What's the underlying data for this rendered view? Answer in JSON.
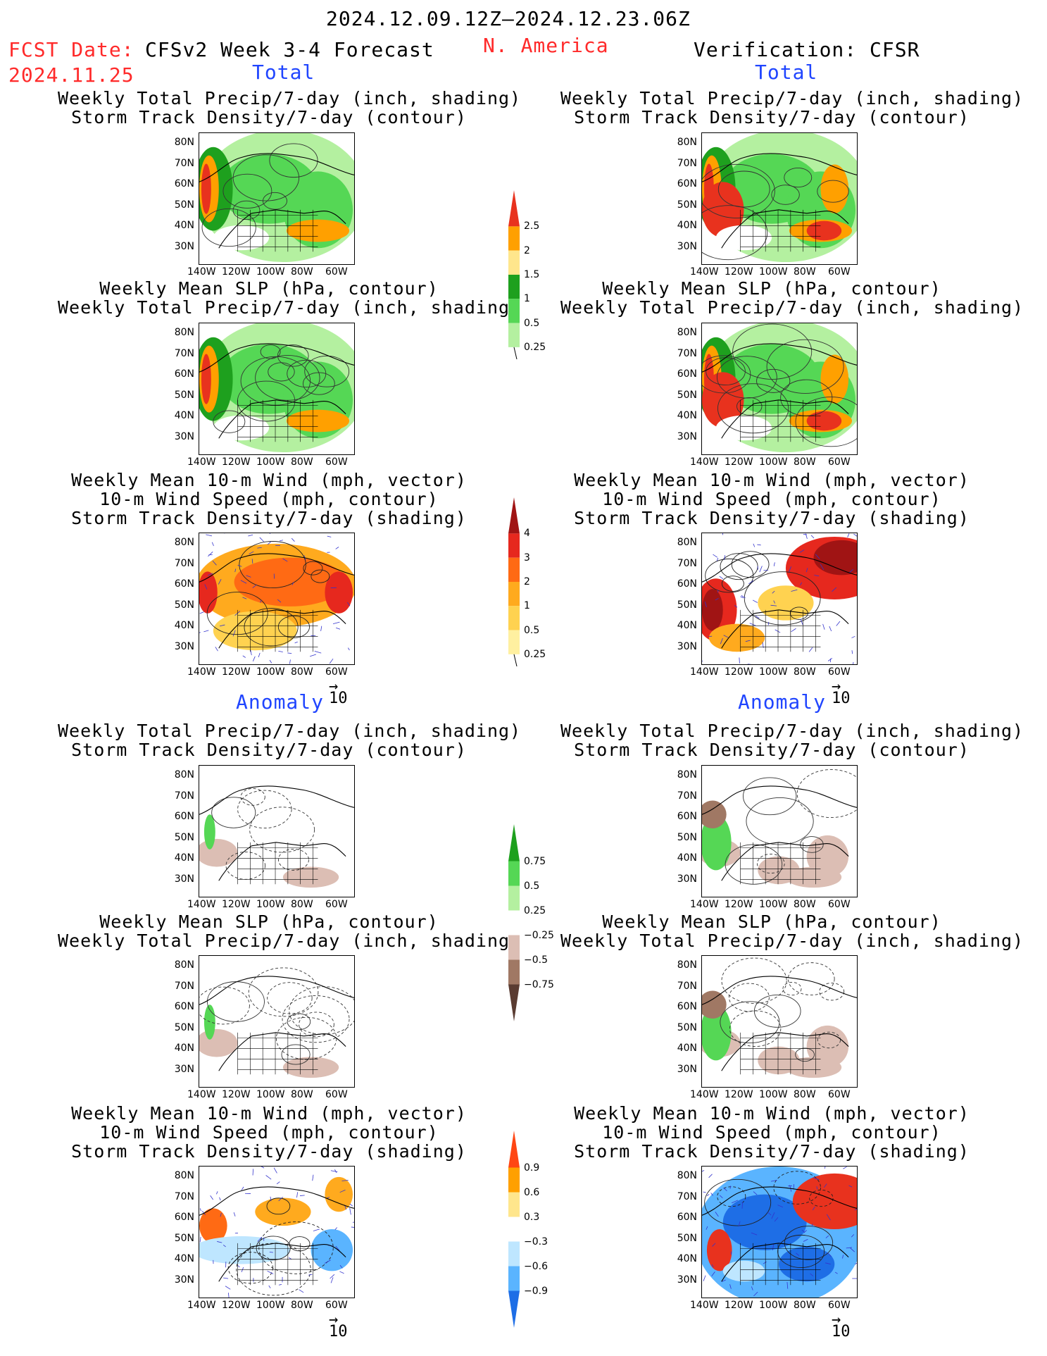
{
  "header": {
    "period": "2024.12.09.12Z–2024.12.23.06Z",
    "fcst_date_label": "FCST Date:",
    "fcst_date": "2024.11.25",
    "model": "CFSv2 Week 3-4 Forecast",
    "region": "N. America",
    "verification": "Verification: CFSR"
  },
  "sections": {
    "total": "Total",
    "anomaly": "Anomaly"
  },
  "panel_titles": {
    "precip_storm": [
      "Weekly Total Precip/7-day (inch, shading)",
      "Storm Track Density/7-day (contour)"
    ],
    "slp_precip": [
      "Weekly Mean SLP (hPa, contour)",
      "Weekly Total Precip/7-day (inch, shading)"
    ],
    "wind_storm": [
      "Weekly Mean 10-m Wind (mph, vector)",
      "10-m Wind Speed (mph, contour)",
      "Storm Track Density/7-day (shading)"
    ]
  },
  "axes": {
    "lat_labels": [
      "80N",
      "70N",
      "60N",
      "50N",
      "40N",
      "30N"
    ],
    "lon_labels": [
      "140W",
      "120W",
      "100W",
      "80W",
      "60W"
    ]
  },
  "vector_ref": "10",
  "colorbars": {
    "precip_total": {
      "labels": [
        "2.5",
        "2",
        "1.5",
        "1",
        "0.5",
        "0.25"
      ],
      "colors": [
        "#e8321e",
        "#ffa000",
        "#ffe68c",
        "#1ea01e",
        "#55d755",
        "#b4f0a0"
      ]
    },
    "storm_total": {
      "labels": [
        "4",
        "3",
        "2",
        "1",
        "0.5",
        "0.25"
      ],
      "colors": [
        "#a01414",
        "#e6281e",
        "#ff6a14",
        "#ffaa1e",
        "#ffd250",
        "#fff0a0"
      ]
    },
    "precip_anom": {
      "labels": [
        "0.75",
        "0.5",
        "0.25",
        "−0.25",
        "−0.5",
        "−0.75"
      ],
      "colors": [
        "#1ea01e",
        "#55d755",
        "#b4f0a0",
        "#ffffff",
        "#dcbeb4",
        "#a07864",
        "#5a3c32"
      ]
    },
    "storm_anom": {
      "labels": [
        "0.9",
        "0.6",
        "0.3",
        "−0.3",
        "−0.6",
        "−0.9"
      ],
      "colors": [
        "#ff4614",
        "#ffa000",
        "#ffe68c",
        "#ffffff",
        "#bee6ff",
        "#5ab4ff",
        "#1e6ee6"
      ]
    }
  }
}
